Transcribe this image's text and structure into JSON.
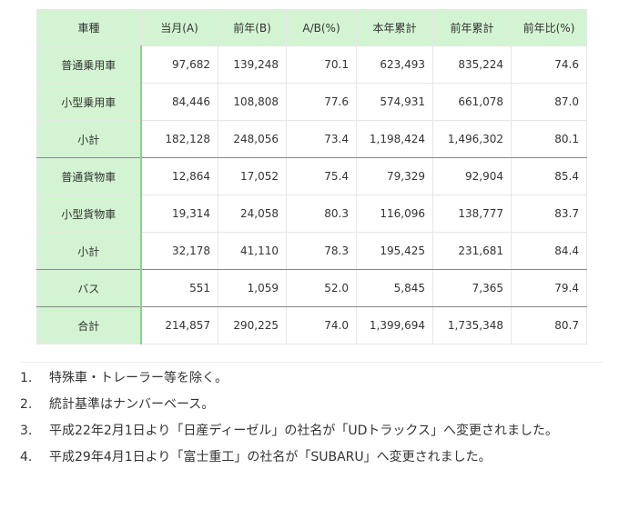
{
  "table": {
    "headers": [
      "車種",
      "当月(A)",
      "前年(B)",
      "A/B(%)",
      "本年累計",
      "前年累計",
      "前年比(%)"
    ],
    "rows": [
      {
        "label": "普通乗用車",
        "cells": [
          "97,682",
          "139,248",
          "70.1",
          "623,493",
          "835,224",
          "74.6"
        ]
      },
      {
        "label": "小型乗用車",
        "cells": [
          "84,446",
          "108,808",
          "77.6",
          "574,931",
          "661,078",
          "87.0"
        ]
      },
      {
        "label": "小計",
        "cells": [
          "182,128",
          "248,056",
          "73.4",
          "1,198,424",
          "1,496,302",
          "80.1"
        ]
      },
      {
        "label": "普通貨物車",
        "cells": [
          "12,864",
          "17,052",
          "75.4",
          "79,329",
          "92,904",
          "85.4"
        ]
      },
      {
        "label": "小型貨物車",
        "cells": [
          "19,314",
          "24,058",
          "80.3",
          "116,096",
          "138,777",
          "83.7"
        ]
      },
      {
        "label": "小計",
        "cells": [
          "32,178",
          "41,110",
          "78.3",
          "195,425",
          "231,681",
          "84.4"
        ]
      },
      {
        "label": "バス",
        "cells": [
          "551",
          "1,059",
          "52.0",
          "5,845",
          "7,365",
          "79.4"
        ]
      },
      {
        "label": "合計",
        "cells": [
          "214,857",
          "290,225",
          "74.0",
          "1,399,694",
          "1,735,348",
          "80.7"
        ]
      }
    ]
  },
  "notes": [
    {
      "num": "1.",
      "text": "特殊車・トレーラー等を除く。"
    },
    {
      "num": "2.",
      "text": "統計基準はナンバーベース。"
    },
    {
      "num": "3.",
      "text": "平成22年2月1日より「日産ディーゼル」の社名が「UDトラックス」へ変更されました。"
    },
    {
      "num": "4.",
      "text": "平成29年4月1日より「富士重工」の社名が「SUBARU」へ変更されました。"
    }
  ],
  "colors": {
    "header_bg": "#d3f4d2",
    "label_divider": "#8fcf8b",
    "group_divider": "#888888"
  }
}
